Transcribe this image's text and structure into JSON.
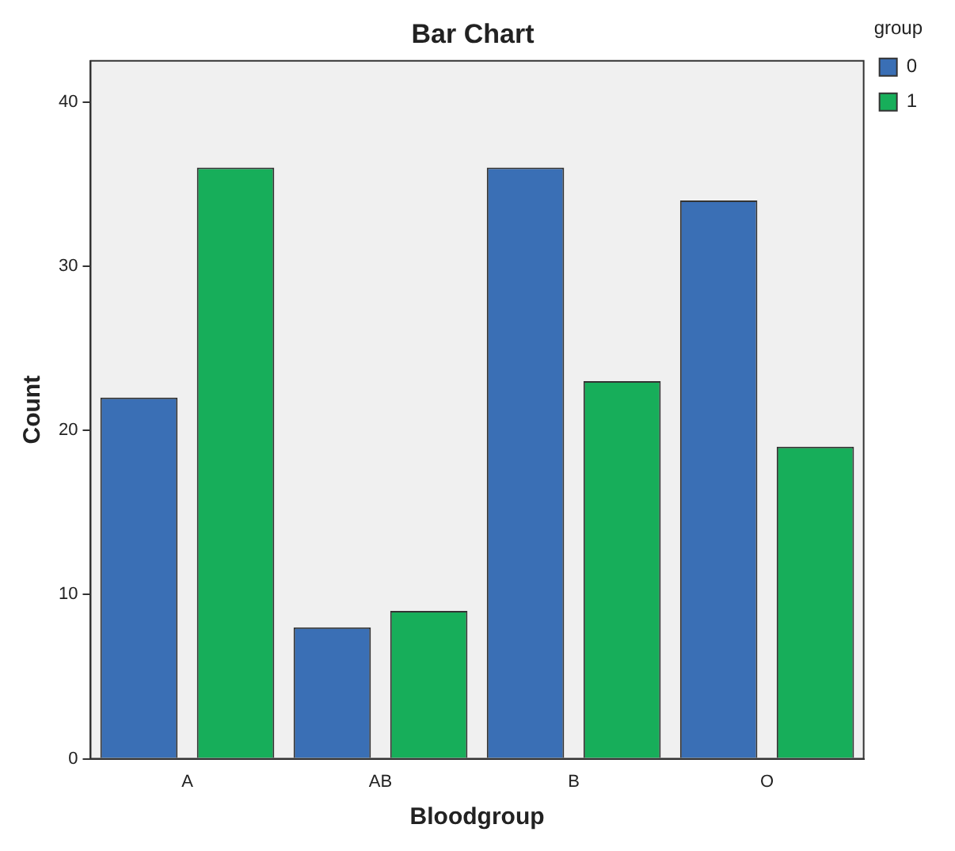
{
  "chart_data": {
    "type": "bar",
    "title": "Bar Chart",
    "xlabel": "Bloodgroup",
    "ylabel": "Count",
    "legend_title": "group",
    "categories": [
      "A",
      "AB",
      "B",
      "O"
    ],
    "series": [
      {
        "name": "0",
        "color": "#3a6fb5",
        "values": [
          22,
          8,
          36,
          34
        ]
      },
      {
        "name": "1",
        "color": "#17ae5a",
        "values": [
          36,
          9,
          23,
          19
        ]
      }
    ],
    "ylim": [
      0,
      42.5
    ],
    "yticks": [
      0,
      10,
      20,
      30,
      40
    ],
    "grid": false,
    "legend": "top right"
  }
}
